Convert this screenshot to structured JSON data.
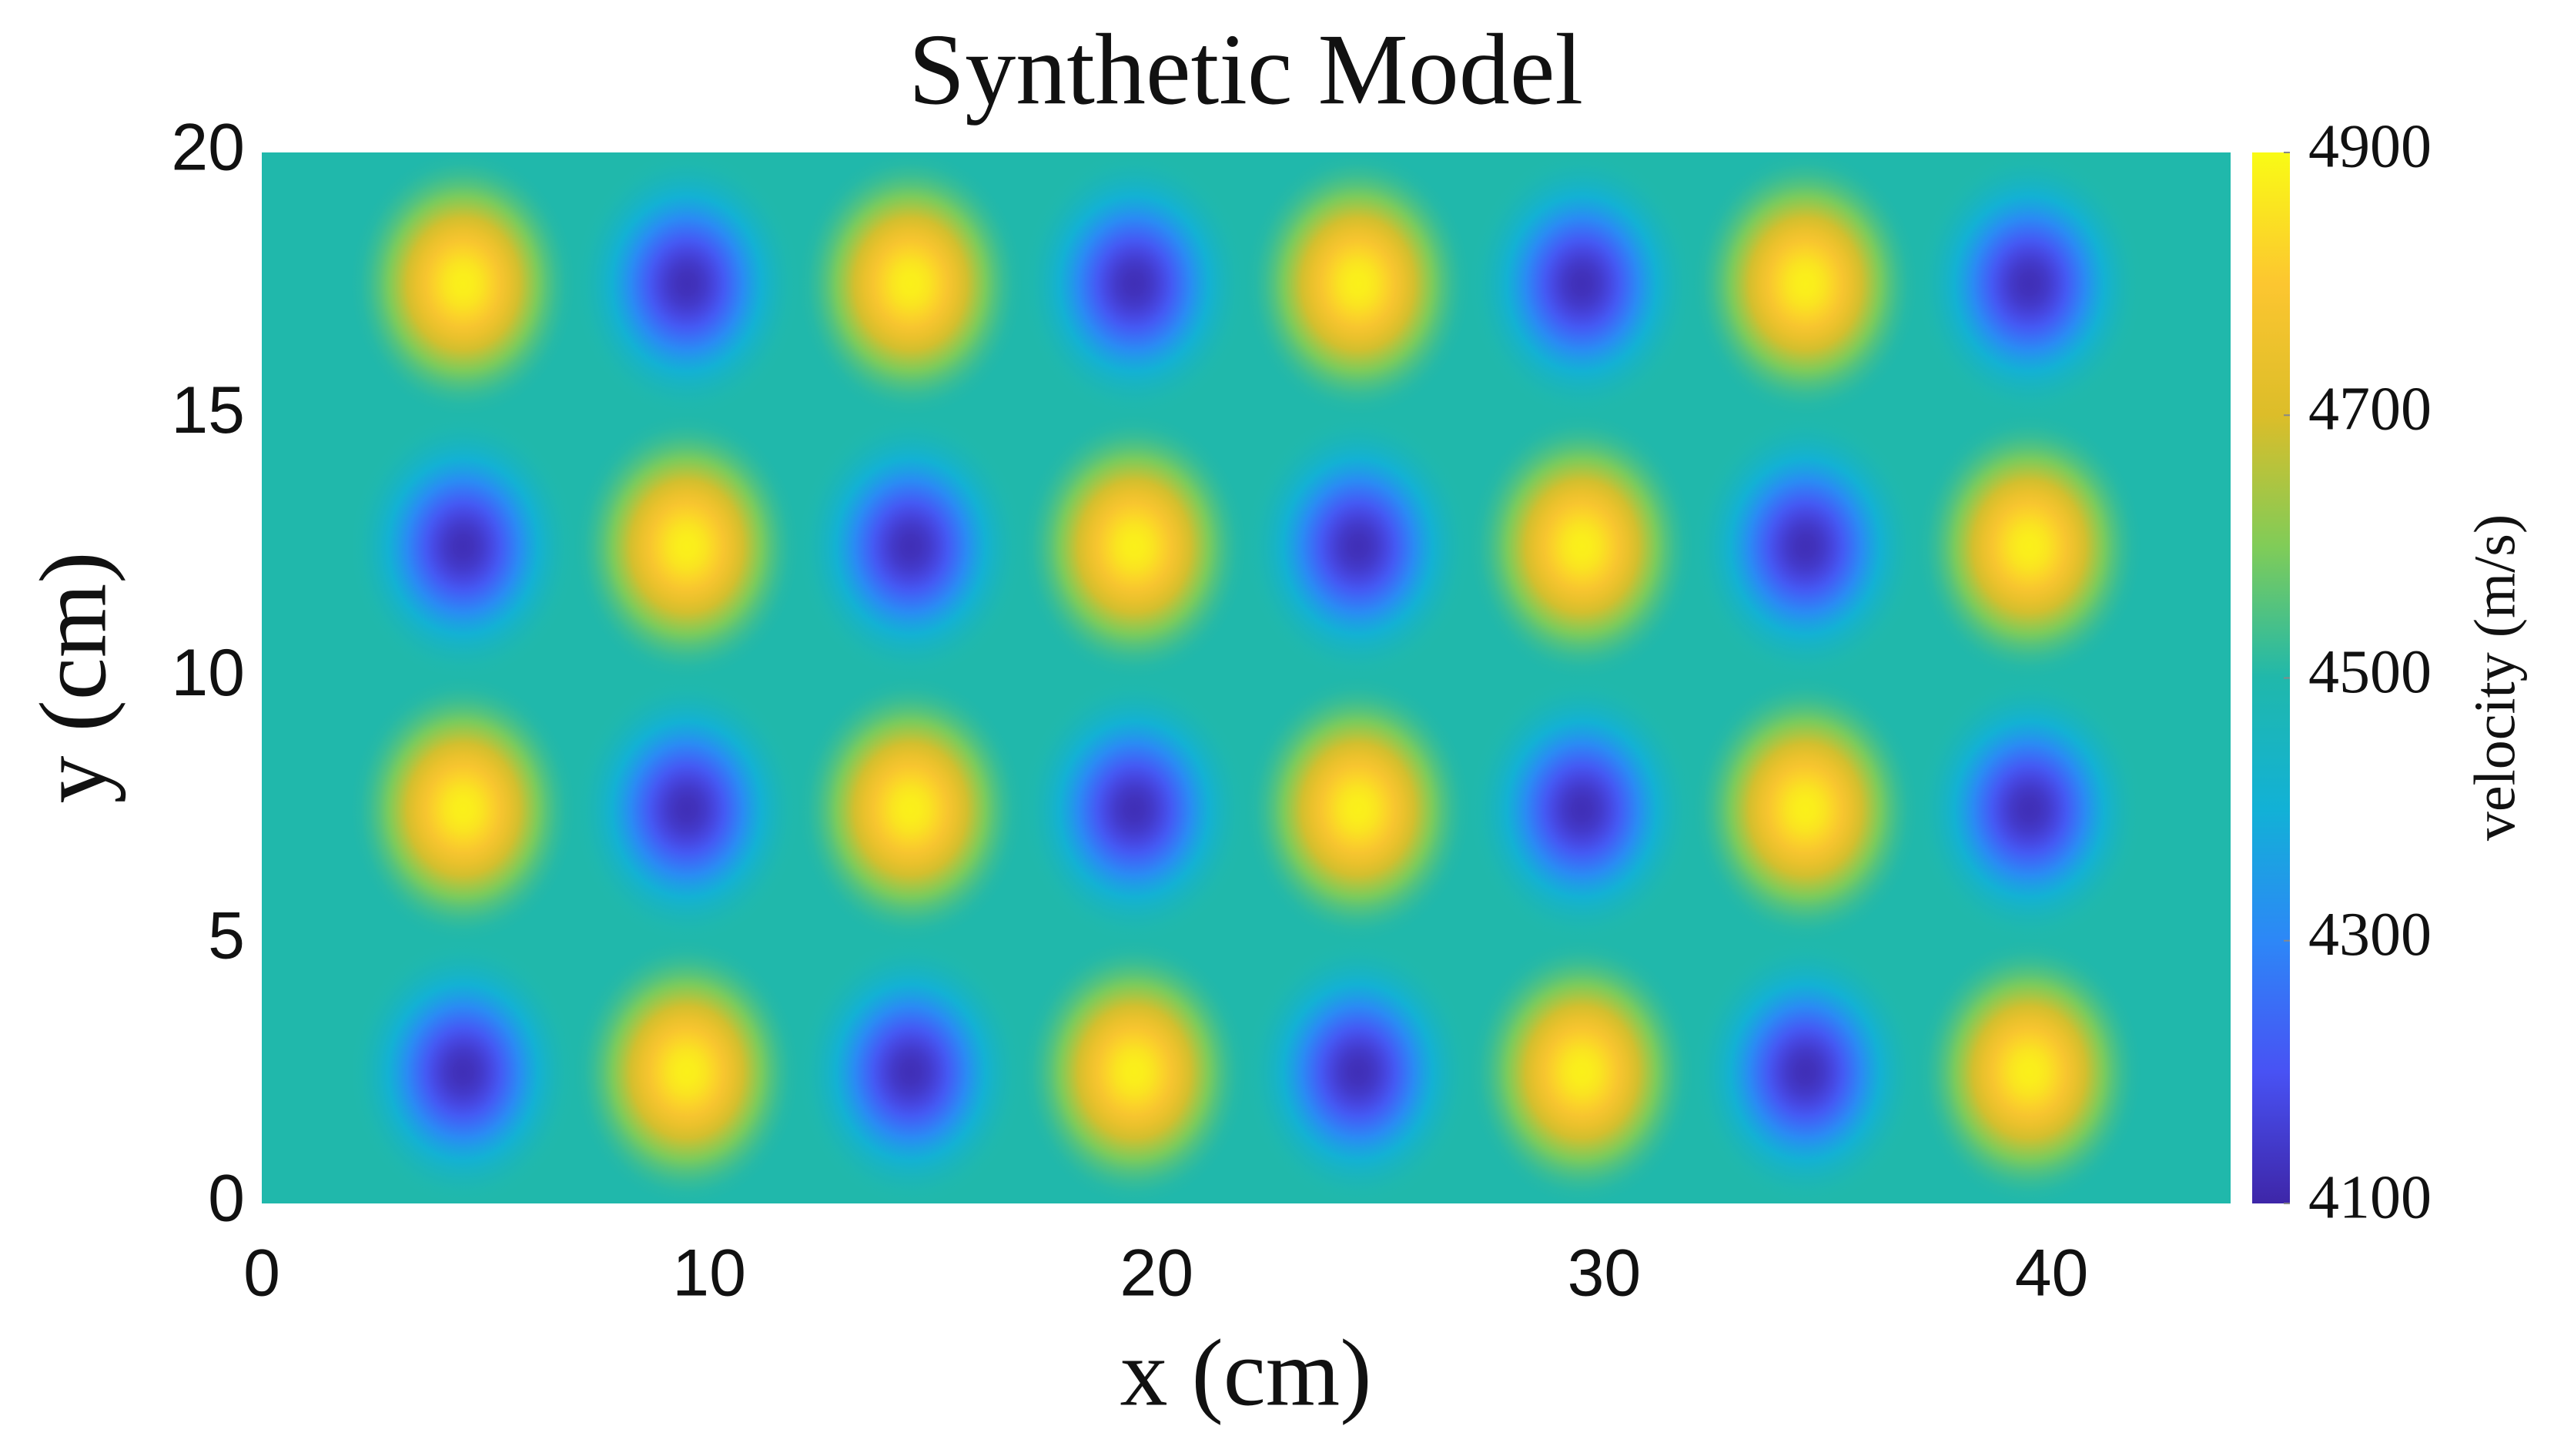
{
  "chart_data": {
    "type": "heatmap",
    "title": "Synthetic Model",
    "xlabel": "x (cm)",
    "ylabel": "y (cm)",
    "colorbar_label": "velocity (m/s)",
    "x": [
      4.5,
      9.5,
      14.5,
      19.5,
      24.5,
      29.5,
      34.5,
      39.5
    ],
    "y": [
      2.5,
      7.5,
      12.5,
      17.5
    ],
    "values": [
      [
        4120,
        4880,
        4120,
        4880,
        4120,
        4880,
        4120,
        4880
      ],
      [
        4880,
        4120,
        4880,
        4120,
        4880,
        4120,
        4880,
        4120
      ],
      [
        4120,
        4880,
        4120,
        4880,
        4120,
        4880,
        4120,
        4880
      ],
      [
        4880,
        4120,
        4880,
        4120,
        4880,
        4120,
        4880,
        4120
      ]
    ],
    "background": 4500,
    "xlim": [
      0,
      44
    ],
    "xticks": [
      0,
      10,
      20,
      30,
      40
    ],
    "ylim": [
      0,
      20
    ],
    "yticks": [
      0,
      5,
      10,
      15,
      20
    ],
    "clim": [
      4100,
      4900
    ],
    "cticks": [
      4100,
      4300,
      4500,
      4700,
      4900
    ],
    "colormap": [
      "#3e26a8",
      "#4852f4",
      "#2d87f7",
      "#12b1d6",
      "#20b8ab",
      "#80cc58",
      "#dcbd29",
      "#fcc630",
      "#f9fb15"
    ]
  }
}
